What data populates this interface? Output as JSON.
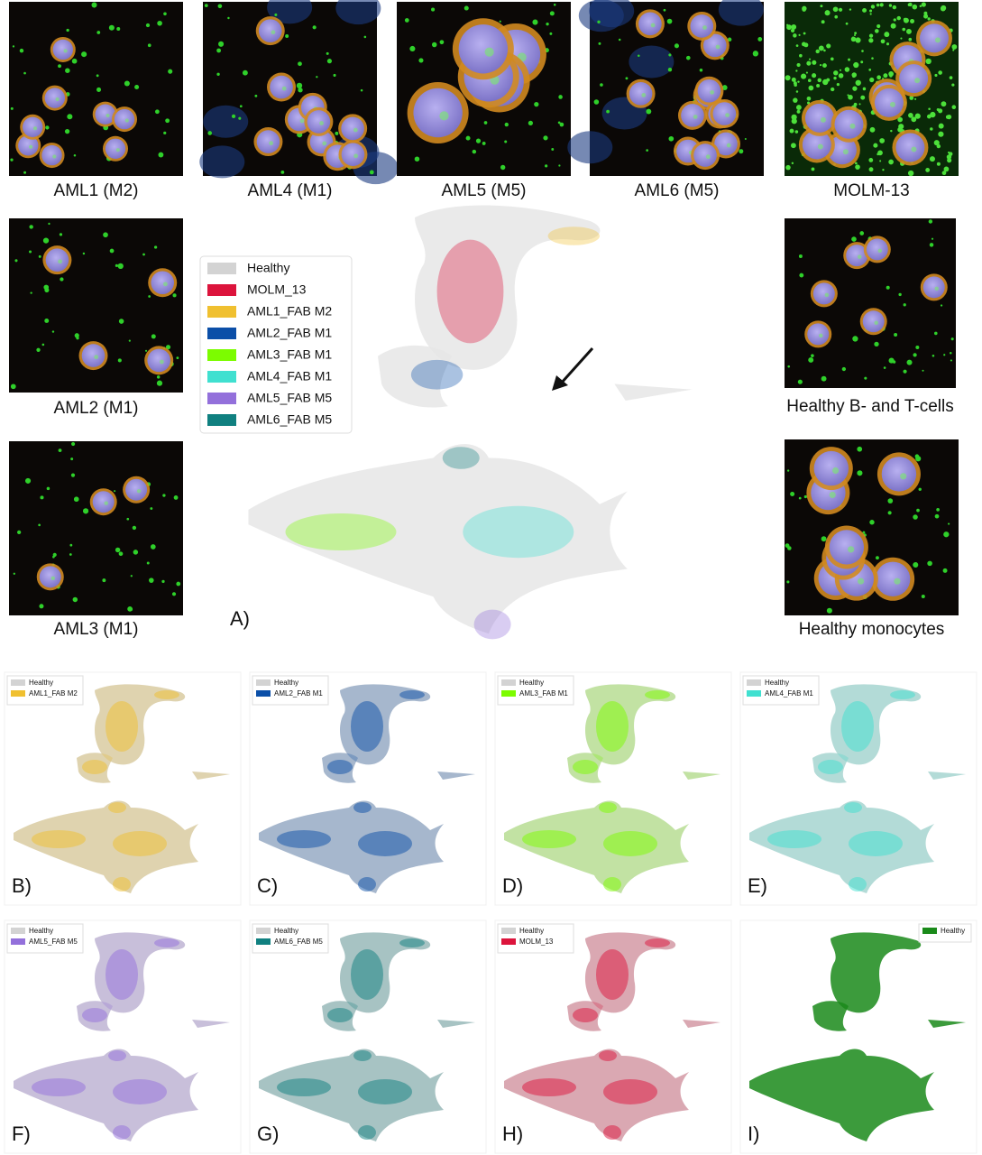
{
  "images": [
    {
      "caption": "AML1 (M2)"
    },
    {
      "caption": "AML4 (M1)"
    },
    {
      "caption": "AML5 (M5)"
    },
    {
      "caption": "AML6 (M5)"
    },
    {
      "caption": "MOLM-13"
    },
    {
      "caption": "AML2 (M1)"
    },
    {
      "caption": "AML3 (M1)"
    },
    {
      "caption": "Healthy B- and T-cells"
    },
    {
      "caption": "Healthy monocytes"
    }
  ],
  "legend": [
    {
      "name": "Healthy",
      "color": "#d3d3d3"
    },
    {
      "name": "MOLM_13",
      "color": "#dc143c"
    },
    {
      "name": "AML1_FAB M2",
      "color": "#f0c030"
    },
    {
      "name": "AML2_FAB M1",
      "color": "#0b4fa8"
    },
    {
      "name": "AML3_FAB M1",
      "color": "#7cfc00"
    },
    {
      "name": "AML4_FAB M1",
      "color": "#40e0d0"
    },
    {
      "name": "AML5_FAB M5",
      "color": "#9370db"
    },
    {
      "name": "AML6_FAB M5",
      "color": "#108080"
    }
  ],
  "panel_a": {
    "label": "A)"
  },
  "panels": [
    {
      "label": "B)",
      "legend": [
        {
          "name": "Healthy",
          "color": "#d3d3d3"
        },
        {
          "name": "AML1_FAB M2",
          "color": "#f0c030"
        }
      ]
    },
    {
      "label": "C)",
      "legend": [
        {
          "name": "Healthy",
          "color": "#d3d3d3"
        },
        {
          "name": "AML2_FAB M1",
          "color": "#0b4fa8"
        }
      ]
    },
    {
      "label": "D)",
      "legend": [
        {
          "name": "Healthy",
          "color": "#d3d3d3"
        },
        {
          "name": "AML3_FAB M1",
          "color": "#7cfc00"
        }
      ]
    },
    {
      "label": "E)",
      "legend": [
        {
          "name": "Healthy",
          "color": "#d3d3d3"
        },
        {
          "name": "AML4_FAB M1",
          "color": "#40e0d0"
        }
      ]
    },
    {
      "label": "F)",
      "legend": [
        {
          "name": "Healthy",
          "color": "#d3d3d3"
        },
        {
          "name": "AML5_FAB M5",
          "color": "#9370db"
        }
      ]
    },
    {
      "label": "G)",
      "legend": [
        {
          "name": "Healthy",
          "color": "#d3d3d3"
        },
        {
          "name": "AML6_FAB M5",
          "color": "#108080"
        }
      ]
    },
    {
      "label": "H)",
      "legend": [
        {
          "name": "Healthy",
          "color": "#d3d3d3"
        },
        {
          "name": "MOLM_13",
          "color": "#dc143c"
        }
      ]
    },
    {
      "label": "I)",
      "legend": [
        {
          "name": "Healthy",
          "color": "#1a8a1a"
        }
      ]
    }
  ]
}
